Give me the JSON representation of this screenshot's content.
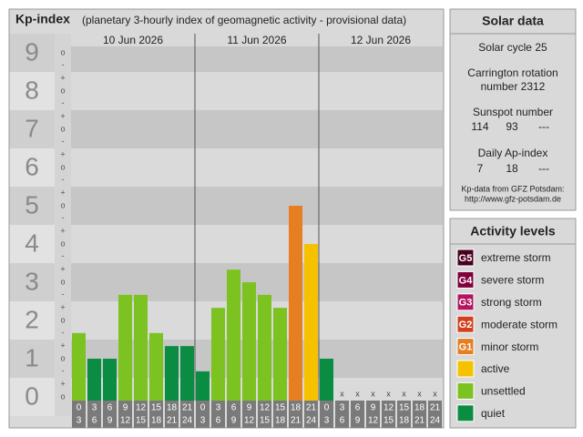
{
  "chart_data": {
    "type": "bar",
    "title": "Kp-index",
    "subtitle": "(planetary 3-hourly index of geomagnetic activity - provisional data)",
    "days": [
      "10 Jun 2026",
      "11 Jun 2026",
      "12 Jun 2026"
    ],
    "x_start": [
      0,
      3,
      6,
      9,
      12,
      15,
      18,
      21,
      0,
      3,
      6,
      9,
      12,
      15,
      18,
      21,
      0,
      3,
      6,
      9,
      12,
      15,
      18,
      21
    ],
    "x_end": [
      3,
      6,
      9,
      12,
      15,
      18,
      21,
      24,
      3,
      6,
      9,
      12,
      15,
      18,
      21,
      24,
      3,
      6,
      9,
      12,
      15,
      18,
      21,
      24
    ],
    "values": [
      1.67,
      1,
      1,
      2.67,
      2.67,
      1.67,
      1.33,
      1.33,
      0.67,
      2.33,
      3.33,
      3,
      2.67,
      2.33,
      5,
      4,
      1,
      null,
      null,
      null,
      null,
      null,
      null,
      null
    ],
    "colors": [
      "#7cc220",
      "#0a8c43",
      "#0a8c43",
      "#7cc220",
      "#7cc220",
      "#7cc220",
      "#0a8c43",
      "#0a8c43",
      "#0a8c43",
      "#7cc220",
      "#7cc220",
      "#7cc220",
      "#7cc220",
      "#7cc220",
      "#e67e22",
      "#f6c200",
      "#0a8c43",
      null,
      null,
      null,
      null,
      null,
      null,
      null
    ],
    "null_label": "x",
    "ylim": [
      -0.5,
      9.5
    ],
    "yticks": [
      0,
      1,
      2,
      3,
      4,
      5,
      6,
      7,
      8,
      9
    ],
    "minor_ticks": [
      {
        "value": 0,
        "label": "o"
      },
      {
        "value": 0.33,
        "label": "+"
      },
      {
        "value": 0.67,
        "label": "-"
      },
      {
        "value": 1,
        "label": "o"
      },
      {
        "value": 1.33,
        "label": "+"
      },
      {
        "value": 1.67,
        "label": "-"
      },
      {
        "value": 2,
        "label": "o"
      },
      {
        "value": 2.33,
        "label": "+"
      },
      {
        "value": 2.67,
        "label": "-"
      },
      {
        "value": 3,
        "label": "o"
      },
      {
        "value": 3.33,
        "label": "+"
      },
      {
        "value": 3.67,
        "label": "-"
      },
      {
        "value": 4,
        "label": "o"
      },
      {
        "value": 4.33,
        "label": "+"
      },
      {
        "value": 4.67,
        "label": "-"
      },
      {
        "value": 5,
        "label": "o"
      },
      {
        "value": 5.33,
        "label": "+"
      },
      {
        "value": 5.67,
        "label": "-"
      },
      {
        "value": 6,
        "label": "o"
      },
      {
        "value": 6.33,
        "label": "+"
      },
      {
        "value": 6.67,
        "label": "-"
      },
      {
        "value": 7,
        "label": "o"
      },
      {
        "value": 7.33,
        "label": "+"
      },
      {
        "value": 7.67,
        "label": "-"
      },
      {
        "value": 8,
        "label": "o"
      },
      {
        "value": 8.33,
        "label": "+"
      },
      {
        "value": 8.67,
        "label": "-"
      },
      {
        "value": 9,
        "label": "o"
      }
    ]
  },
  "solar_data": {
    "title": "Solar data",
    "cycle_label": "Solar cycle",
    "cycle": 25,
    "rotation_label": "Carrington rotation",
    "rotation_prefix": "number",
    "rotation": 2312,
    "sunspot_label": "Sunspot number",
    "sunspots": [
      114,
      93,
      "---"
    ],
    "ap_label": "Daily Ap-index",
    "ap": [
      7,
      18,
      "---"
    ],
    "source": "Kp-data from GFZ Potsdam:",
    "url": "http://www.gfz-potsdam.de"
  },
  "activity_levels": {
    "title": "Activity levels",
    "items": [
      {
        "badge": "G5",
        "label": "extreme storm",
        "color": "#4a0020"
      },
      {
        "badge": "G4",
        "label": "severe storm",
        "color": "#80003c"
      },
      {
        "badge": "G3",
        "label": "strong storm",
        "color": "#b3165e"
      },
      {
        "badge": "G2",
        "label": "moderate storm",
        "color": "#d3401f"
      },
      {
        "badge": "G1",
        "label": "minor storm",
        "color": "#e67e22"
      },
      {
        "badge": null,
        "label": "active",
        "color": "#f6c200"
      },
      {
        "badge": null,
        "label": "unsettled",
        "color": "#7cc220"
      },
      {
        "badge": null,
        "label": "quiet",
        "color": "#0a8c43"
      }
    ]
  }
}
